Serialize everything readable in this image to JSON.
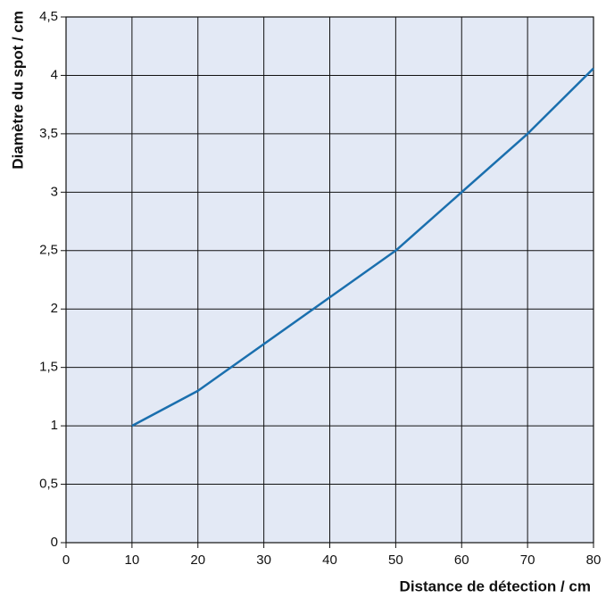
{
  "chart_data": {
    "type": "line",
    "x_label": "Distance de détection / cm",
    "y_label": "Diamètre du spot / cm",
    "x": [
      10,
      20,
      30,
      40,
      50,
      60,
      70,
      80
    ],
    "series": [
      {
        "color": "#1a6fae",
        "values": [
          1,
          1.3,
          1.7,
          2.1,
          2.5,
          3.0,
          3.5,
          4.06
        ]
      }
    ],
    "xlim": [
      0,
      80
    ],
    "xticks": [
      0,
      10,
      20,
      30,
      40,
      50,
      60,
      70,
      80
    ],
    "ylim": [
      0,
      4.5
    ],
    "yticks": [
      0,
      {
        "value": 0.5,
        "label": "0,5"
      },
      1,
      {
        "value": 1.5,
        "label": "1,5"
      },
      2,
      {
        "value": 2.5,
        "label": "2,5"
      },
      3,
      {
        "value": 3.5,
        "label": "3,5"
      },
      4,
      {
        "value": 4.5,
        "label": "4,5"
      }
    ],
    "grid": true,
    "background": "#e3e9f5"
  }
}
